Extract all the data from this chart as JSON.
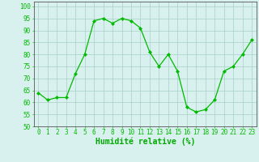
{
  "x": [
    0,
    1,
    2,
    3,
    4,
    5,
    6,
    7,
    8,
    9,
    10,
    11,
    12,
    13,
    14,
    15,
    16,
    17,
    18,
    19,
    20,
    21,
    22,
    23
  ],
  "y": [
    64,
    61,
    62,
    62,
    72,
    80,
    94,
    95,
    93,
    95,
    94,
    91,
    81,
    75,
    80,
    73,
    58,
    56,
    57,
    61,
    73,
    75,
    80,
    86
  ],
  "line_color": "#00bb00",
  "marker": "D",
  "marker_size": 2.0,
  "bg_color": "#d8f0ee",
  "grid_color": "#a8cfc8",
  "xlabel": "Humidité relative (%)",
  "xlabel_color": "#00aa00",
  "ylim": [
    50,
    102
  ],
  "yticks": [
    50,
    55,
    60,
    65,
    70,
    75,
    80,
    85,
    90,
    95,
    100
  ],
  "xticks": [
    0,
    1,
    2,
    3,
    4,
    5,
    6,
    7,
    8,
    9,
    10,
    11,
    12,
    13,
    14,
    15,
    16,
    17,
    18,
    19,
    20,
    21,
    22,
    23
  ],
  "tick_color": "#00bb00",
  "tick_fontsize": 5.5,
  "xlabel_fontsize": 7.0,
  "linewidth": 0.9
}
